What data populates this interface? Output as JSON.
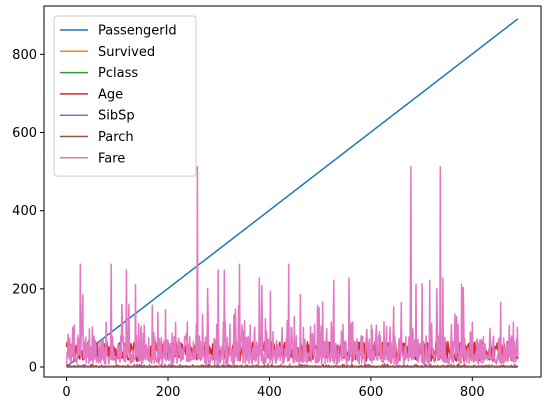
{
  "chart_data": {
    "type": "line",
    "title": "",
    "xlabel": "",
    "ylabel": "",
    "xlim": [
      -44.5,
      935.5
    ],
    "ylim": [
      -25.6,
      923.7
    ],
    "x_ticks": [
      0,
      200,
      400,
      600,
      800
    ],
    "y_ticks": [
      0,
      200,
      400,
      600,
      800
    ],
    "x_tick_labels": [
      "0",
      "200",
      "400",
      "600",
      "800"
    ],
    "y_tick_labels": [
      "0",
      "200",
      "400",
      "600",
      "800"
    ],
    "grid": false,
    "legend_position": "upper-left",
    "x_range": [
      0,
      890
    ],
    "series": [
      {
        "name": "PassengerId",
        "color": "#1f77b4",
        "kind": "linear",
        "values_start": 1,
        "values_end": 891
      },
      {
        "name": "Survived",
        "color": "#ff7f0e",
        "kind": "noise",
        "min": 0,
        "max": 1
      },
      {
        "name": "Pclass",
        "color": "#2ca02c",
        "kind": "noise",
        "min": 1,
        "max": 3
      },
      {
        "name": "Age",
        "color": "#d62728",
        "kind": "noise",
        "min": 0.42,
        "max": 80
      },
      {
        "name": "SibSp",
        "color": "#9467bd",
        "kind": "noise",
        "min": 0,
        "max": 8
      },
      {
        "name": "Parch",
        "color": "#8c564b",
        "kind": "noise",
        "min": 0,
        "max": 6
      },
      {
        "name": "Fare",
        "color": "#e377c2",
        "kind": "noise",
        "min": 0,
        "max": 512.33,
        "peaks": [
          {
            "x": 258,
            "y": 512.33
          },
          {
            "x": 679,
            "y": 512.33
          },
          {
            "x": 737,
            "y": 512.33
          },
          {
            "x": 27,
            "y": 263
          },
          {
            "x": 88,
            "y": 263
          },
          {
            "x": 341,
            "y": 263
          },
          {
            "x": 438,
            "y": 263
          },
          {
            "x": 311,
            "y": 247.5
          },
          {
            "x": 742,
            "y": 227.5
          },
          {
            "x": 716,
            "y": 221.8
          },
          {
            "x": 557,
            "y": 227.5
          },
          {
            "x": 527,
            "y": 221.8
          },
          {
            "x": 689,
            "y": 211.3
          },
          {
            "x": 779,
            "y": 211.3
          },
          {
            "x": 118,
            "y": 247.5
          },
          {
            "x": 299,
            "y": 247.5
          },
          {
            "x": 380,
            "y": 227.5
          },
          {
            "x": 660,
            "y": 164.9
          },
          {
            "x": 498,
            "y": 151.6
          },
          {
            "x": 856,
            "y": 164.9
          },
          {
            "x": 31,
            "y": 146.5
          },
          {
            "x": 195,
            "y": 146.5
          },
          {
            "x": 645,
            "y": 153.5
          },
          {
            "x": 766,
            "y": 135.6
          },
          {
            "x": 215,
            "y": 113.3
          },
          {
            "x": 268,
            "y": 134.5
          }
        ]
      }
    ]
  }
}
